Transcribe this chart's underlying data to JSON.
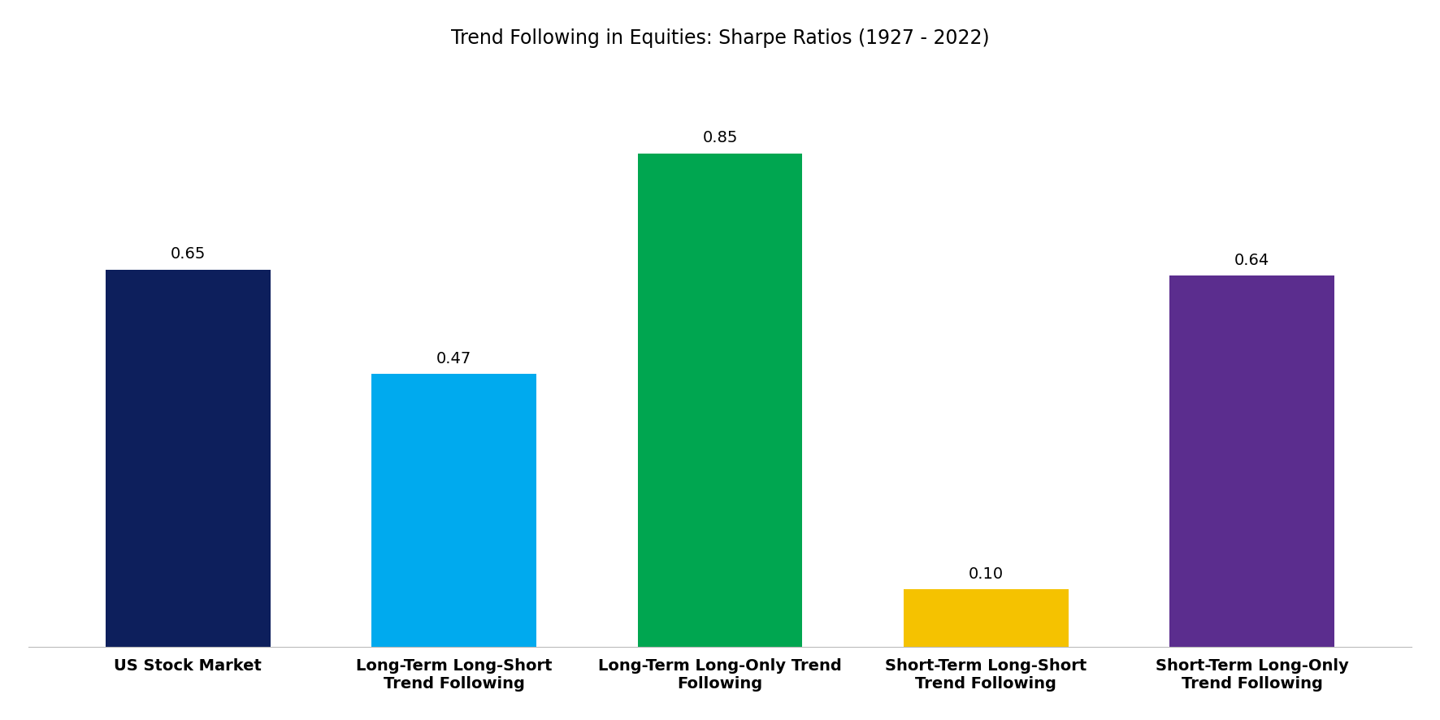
{
  "title": "Trend Following in Equities: Sharpe Ratios (1927 - 2022)",
  "categories": [
    "US Stock Market",
    "Long-Term Long-Short\nTrend Following",
    "Long-Term Long-Only Trend\nFollowing",
    "Short-Term Long-Short\nTrend Following",
    "Short-Term Long-Only\nTrend Following"
  ],
  "values": [
    0.65,
    0.47,
    0.85,
    0.1,
    0.64
  ],
  "bar_colors": [
    "#0d1f5c",
    "#00aaee",
    "#00a650",
    "#f5c200",
    "#5b2d8e"
  ],
  "bar_width": 0.62,
  "title_fontsize": 17,
  "value_fontsize": 14,
  "tick_fontsize": 14,
  "ylim": [
    0,
    1.0
  ],
  "background_color": "#ffffff"
}
